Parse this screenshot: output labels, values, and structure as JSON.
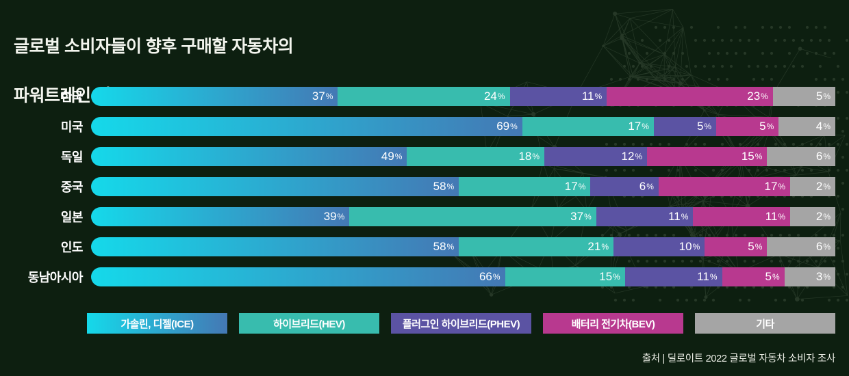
{
  "title": {
    "line1": "글로벌 소비자들이 향후 구매할 자동차의",
    "line2": "파워트레인 선호도"
  },
  "source": "출처 | 딜로이트 2022 글로벌 자동차 소비자 조사",
  "colors": {
    "background": "#0d1f10",
    "title_text": "#f3f5ee",
    "value_text": "#ffffff",
    "pattern": "#667a62",
    "ice_gradient_start": "#15d9ea",
    "ice_gradient_end": "#4478b4",
    "hev": "#38bcae",
    "phev": "#5b53a3",
    "bev": "#b8398f",
    "other": "#a5a5a5"
  },
  "chart_data": {
    "type": "bar",
    "orientation": "horizontal",
    "stacked": true,
    "unit": "%",
    "value_suffix": "%",
    "xlim": [
      0,
      100
    ],
    "grid": false,
    "legend_position": "bottom",
    "categories": [
      "한국",
      "미국",
      "독일",
      "중국",
      "일본",
      "인도",
      "동남아시아"
    ],
    "series": [
      {
        "name": "가솔린, 디젤(ICE)",
        "color": "#4478b4",
        "gradient_start": "#15d9ea",
        "values": [
          37,
          69,
          49,
          58,
          39,
          58,
          66
        ]
      },
      {
        "name": "하이브리드(HEV)",
        "color": "#38bcae",
        "values": [
          24,
          17,
          18,
          17,
          37,
          21,
          15
        ]
      },
      {
        "name": "플러그인 하이브리드(PHEV)",
        "color": "#5b53a3",
        "values": [
          11,
          5,
          12,
          6,
          11,
          10,
          11
        ]
      },
      {
        "name": "배터리 전기차(BEV)",
        "color": "#b8398f",
        "values": [
          23,
          5,
          15,
          17,
          11,
          5,
          5
        ]
      },
      {
        "name": "기타",
        "color": "#a5a5a5",
        "values": [
          5,
          4,
          6,
          2,
          2,
          6,
          3
        ]
      }
    ]
  }
}
